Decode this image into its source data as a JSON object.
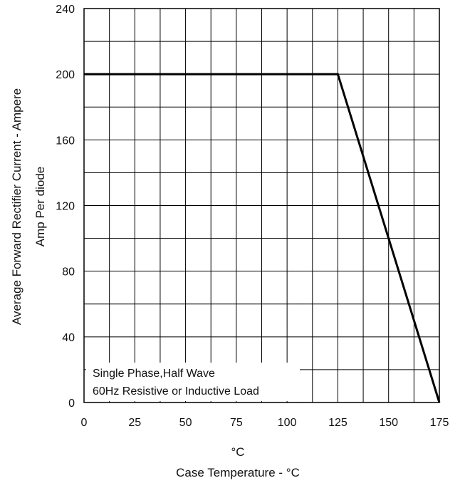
{
  "chart_data": {
    "type": "line",
    "title": "",
    "xlabel_unit": "°C",
    "xlabel": "Case Temperature - °C",
    "ylabel": "Average  Forward  Rectifier  Current - Ampere",
    "ylabel_sub": "Amp   Per diode",
    "xlim": [
      0,
      175
    ],
    "ylim": [
      0,
      240
    ],
    "x_ticks": [
      0,
      25,
      50,
      75,
      100,
      125,
      150,
      175
    ],
    "y_ticks": [
      0,
      40,
      80,
      120,
      160,
      200,
      240
    ],
    "grid": true,
    "series": [
      {
        "x": [
          0,
          125,
          175
        ],
        "y": [
          200,
          200,
          0
        ]
      }
    ],
    "annotation": [
      "Single Phase,Half Wave",
      "60Hz Resistive or Inductive Load"
    ]
  }
}
